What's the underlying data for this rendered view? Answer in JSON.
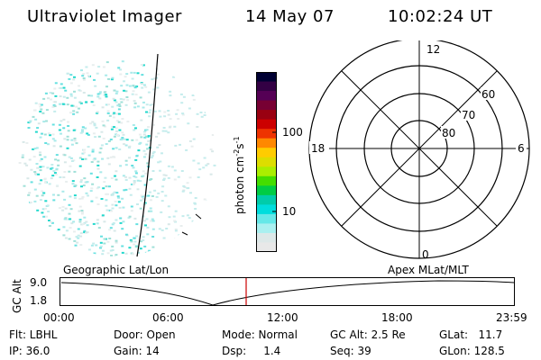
{
  "header": {
    "instrument": "Ultraviolet Imager",
    "date": "14 May 07",
    "time": "10:02:24 UT"
  },
  "colorbar": {
    "label": "photon cm-2s-1",
    "ticks": [
      "100",
      "10"
    ],
    "colors": [
      "#000033",
      "#330044",
      "#550055",
      "#770033",
      "#990011",
      "#cc0000",
      "#ee3300",
      "#ff8800",
      "#ffcc00",
      "#dddd00",
      "#aaee00",
      "#44dd00",
      "#00cc44",
      "#00ccaa",
      "#00dddd",
      "#66e8e8",
      "#aaf0f0",
      "#dde8e8",
      "#e8e8e8"
    ]
  },
  "polar_grid": {
    "mlt_labels": [
      "12",
      "18",
      "6",
      "0"
    ],
    "lat_labels": [
      "60",
      "70",
      "80"
    ]
  },
  "timeline": {
    "left_label": "Geographic Lat/Lon",
    "right_label": "Apex MLat/MLT",
    "yaxis_label": "GC Alt",
    "y_ticks": [
      "9.0",
      "1.8"
    ],
    "x_ticks": [
      "00:00",
      "06:00",
      "12:00",
      "18:00",
      "23:59"
    ],
    "cursor_color": "#cc0000"
  },
  "status": {
    "flt": "Flt: LBHL",
    "ip": "IP: 36.0",
    "door": "Door: Open",
    "gain": "Gain: 14",
    "mode": "Mode: Normal",
    "dsp": "Dsp:     1.4",
    "gc_alt": "GC Alt: 2.5 Re",
    "seq": "Seq: 39",
    "glat": "GLat:   11.7",
    "glon": "GLon: 128.5"
  }
}
